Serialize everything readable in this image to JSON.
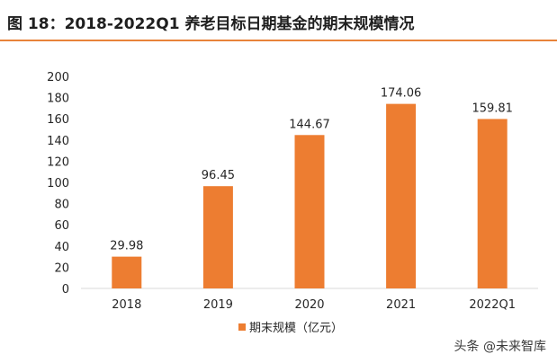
{
  "title": "图 18：2018-2022Q1 养老目标日期基金的期末规模情况",
  "watermark": "头条 @未来智库",
  "colors": {
    "bar": "#ED7D31",
    "accent": "#E8833A",
    "axis": "#d9d9d9",
    "text": "#262626"
  },
  "chart_data": {
    "type": "bar",
    "categories": [
      "2018",
      "2019",
      "2020",
      "2021",
      "2022Q1"
    ],
    "series": [
      {
        "name": "期末规模（亿元）",
        "values": [
          29.98,
          96.45,
          144.67,
          174.06,
          159.81
        ]
      }
    ],
    "data_labels": [
      "29.98",
      "96.45",
      "144.67",
      "174.06",
      "159.81"
    ],
    "yticks": [
      0,
      20,
      40,
      60,
      80,
      100,
      120,
      140,
      160,
      180,
      200
    ],
    "ylim": [
      0,
      200
    ],
    "grid": false,
    "legend_position": "bottom"
  }
}
